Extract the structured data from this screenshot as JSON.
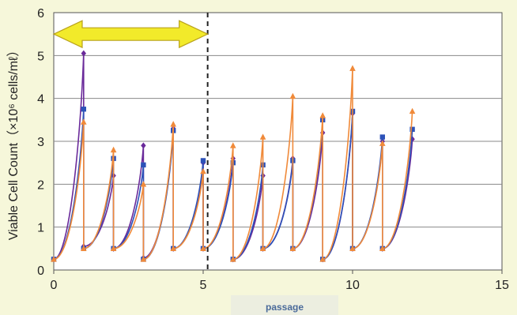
{
  "chart_data": {
    "type": "line",
    "title": "",
    "xlabel": "passage",
    "ylabel": "Viable Cell Count（×10⁶ cells/mℓ）",
    "xlim": [
      0,
      15
    ],
    "ylim": [
      0,
      6
    ],
    "x_ticks": [
      "0",
      "5",
      "10",
      "15"
    ],
    "y_ticks": [
      "0",
      "1",
      "2",
      "3",
      "4",
      "5",
      "6"
    ],
    "grid": "horizontal",
    "legend": "none",
    "annotations": {
      "double_arrow": {
        "from": 0,
        "to": 5.15,
        "y": 5.5,
        "fill": "#f2ea2a",
        "stroke": "#b9a21b"
      },
      "dashed_line": {
        "x": 5.15
      }
    },
    "series": [
      {
        "color": "#6a2a9a",
        "marker": "diamond",
        "points": [
          [
            0,
            0.25
          ],
          [
            1,
            5.05
          ],
          [
            1,
            0.55
          ],
          [
            2,
            2.2
          ],
          [
            2,
            0.5
          ],
          [
            3,
            2.9
          ],
          [
            3,
            0.28
          ],
          [
            4,
            3.3
          ],
          [
            4,
            0.5
          ],
          [
            5,
            2.5
          ],
          [
            5,
            0.5
          ],
          [
            6,
            2.6
          ],
          [
            6,
            0.25
          ],
          [
            7,
            2.2
          ],
          [
            7,
            0.5
          ],
          [
            8,
            2.6
          ],
          [
            8,
            0.5
          ],
          [
            9,
            3.2
          ],
          [
            9,
            0.25
          ],
          [
            10,
            3.65
          ],
          [
            10,
            0.5
          ],
          [
            11,
            3.0
          ],
          [
            11,
            0.5
          ],
          [
            12,
            3.05
          ]
        ]
      },
      {
        "color": "#2d52b8",
        "marker": "square",
        "points": [
          [
            0,
            0.25
          ],
          [
            1,
            3.75
          ],
          [
            1,
            0.5
          ],
          [
            2,
            2.6
          ],
          [
            2,
            0.5
          ],
          [
            3,
            2.45
          ],
          [
            3,
            0.25
          ],
          [
            4,
            3.25
          ],
          [
            4,
            0.5
          ],
          [
            5,
            2.55
          ],
          [
            5,
            0.5
          ],
          [
            6,
            2.5
          ],
          [
            6,
            0.25
          ],
          [
            7,
            2.45
          ],
          [
            7,
            0.5
          ],
          [
            8,
            2.55
          ],
          [
            8,
            0.5
          ],
          [
            9,
            3.5
          ],
          [
            9,
            0.25
          ],
          [
            10,
            3.7
          ],
          [
            10,
            0.5
          ],
          [
            11,
            3.1
          ],
          [
            11,
            0.5
          ],
          [
            12,
            3.28
          ]
        ]
      },
      {
        "color": "#f08a3a",
        "marker": "triangle",
        "points": [
          [
            0,
            0.25
          ],
          [
            1,
            3.45
          ],
          [
            1,
            0.5
          ],
          [
            2,
            2.8
          ],
          [
            2,
            0.5
          ],
          [
            3,
            2.0
          ],
          [
            3,
            0.25
          ],
          [
            4,
            3.4
          ],
          [
            4,
            0.5
          ],
          [
            5,
            2.3
          ],
          [
            5,
            0.5
          ],
          [
            6,
            2.9
          ],
          [
            6,
            0.25
          ],
          [
            7,
            3.1
          ],
          [
            7,
            0.5
          ],
          [
            8,
            4.05
          ],
          [
            8,
            0.5
          ],
          [
            9,
            3.6
          ],
          [
            9,
            0.25
          ],
          [
            10,
            4.7
          ],
          [
            10,
            0.5
          ],
          [
            11,
            2.95
          ],
          [
            11,
            0.5
          ],
          [
            12,
            3.7
          ]
        ]
      }
    ]
  }
}
